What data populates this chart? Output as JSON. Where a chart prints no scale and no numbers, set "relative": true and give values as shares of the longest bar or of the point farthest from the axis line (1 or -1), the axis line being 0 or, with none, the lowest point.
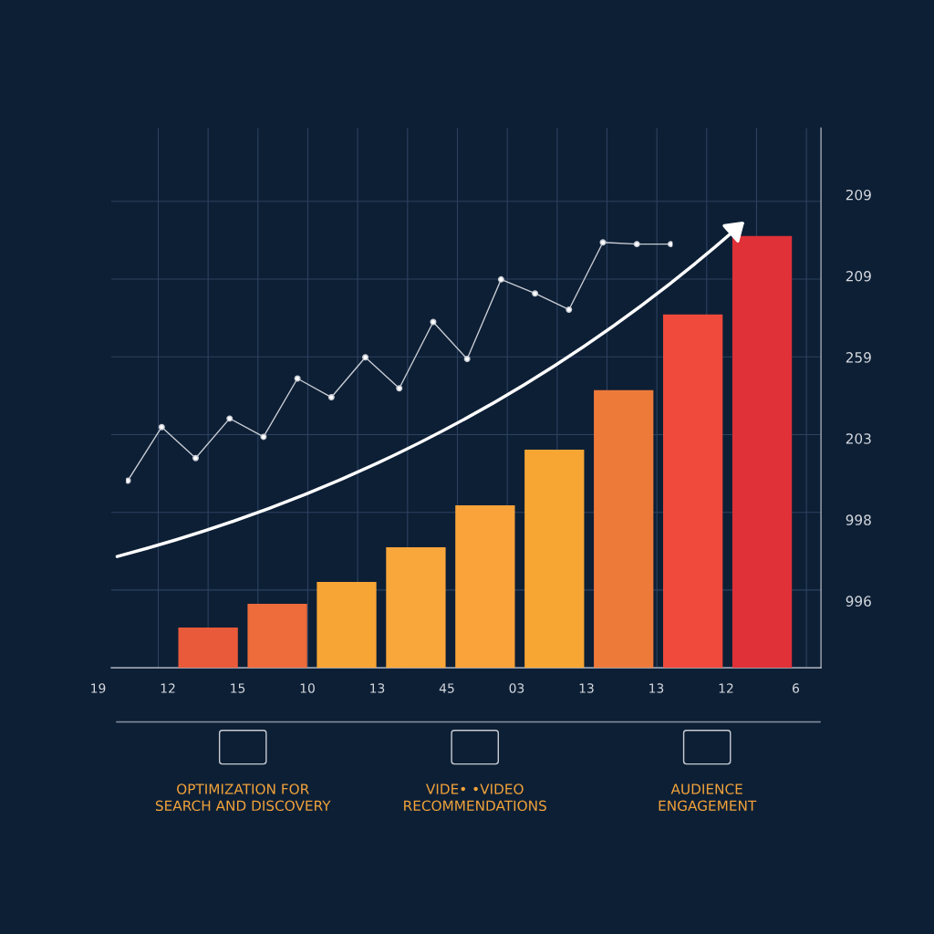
{
  "chart_data": [
    {
      "type": "bar",
      "relative": true,
      "grid": true,
      "tick_labels": false,
      "categories": [
        null,
        null,
        null,
        null,
        null,
        null,
        null,
        null,
        null
      ],
      "colors": [
        "#e85a3a",
        "#ee6b3b",
        "#f7a535",
        "#f9a73a",
        "#f9a33a",
        "#f7a634",
        "#ee7a3a",
        "#ef4a3c",
        "#e03038"
      ],
      "values": [
        0.093,
        0.148,
        0.199,
        0.279,
        0.376,
        0.505,
        0.643,
        0.818,
        1
      ],
      "annotations": [
        "209",
        "209",
        "259",
        "203",
        "998",
        "996",
        "19",
        "12",
        "15",
        "10",
        "13",
        "45",
        "03",
        "13",
        "13",
        "12",
        "6",
        "OPTIMIZATION FOR\nSEARCH AND DISCOVERY",
        "VIDE• •VIDEO\nRECOMMENDATIONS",
        "AUDIENCE\nENGAGEMENT"
      ]
    },
    {
      "type": "line",
      "relative": true,
      "tick_labels": false,
      "marker": "circle",
      "color": "#c8ccd4",
      "categories": [
        null,
        null,
        null,
        null,
        null,
        null,
        null,
        null,
        null,
        null,
        null,
        null,
        null,
        null,
        null,
        null,
        null
      ],
      "values": [
        0.44,
        0.566,
        0.493,
        0.586,
        0.543,
        0.68,
        0.636,
        0.73,
        0.657,
        0.813,
        0.726,
        0.913,
        0.88,
        0.842,
        1,
        0.996,
        0.996
      ]
    }
  ]
}
